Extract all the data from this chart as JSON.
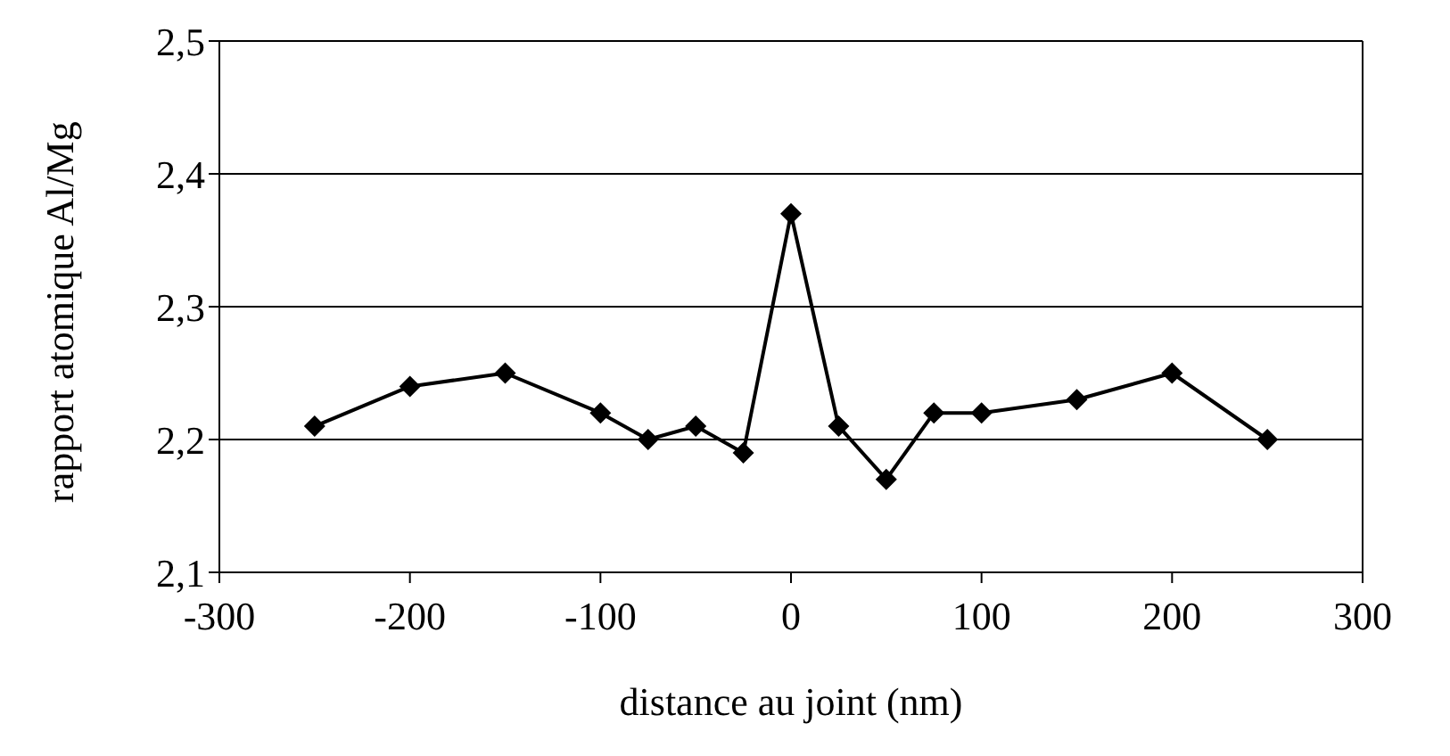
{
  "chart_data": {
    "type": "line",
    "xlabel": "distance au joint (nm)",
    "ylabel": "rapport atomique Al/Mg",
    "x": [
      -250,
      -200,
      -150,
      -100,
      -75,
      -50,
      -25,
      0,
      25,
      50,
      75,
      100,
      150,
      200,
      250
    ],
    "series": [
      {
        "color": "#000000",
        "values": [
          2.21,
          2.24,
          2.25,
          2.22,
          2.2,
          2.21,
          2.19,
          2.37,
          2.21,
          2.17,
          2.22,
          2.22,
          2.23,
          2.25,
          2.2
        ]
      }
    ],
    "xlim": [
      -300,
      300
    ],
    "xticks": [
      -300,
      -200,
      -100,
      0,
      100,
      200,
      300
    ],
    "ylim": [
      2.1,
      2.5
    ],
    "yticks": [
      {
        "value": 2.1,
        "label": "2,1"
      },
      {
        "value": 2.2,
        "label": "2,2"
      },
      {
        "value": 2.3,
        "label": "2,3"
      },
      {
        "value": 2.4,
        "label": "2,4"
      },
      {
        "value": 2.5,
        "label": "2,5"
      }
    ],
    "grid": "y",
    "legend": false,
    "marker": "diamond",
    "line_style": "solid"
  }
}
